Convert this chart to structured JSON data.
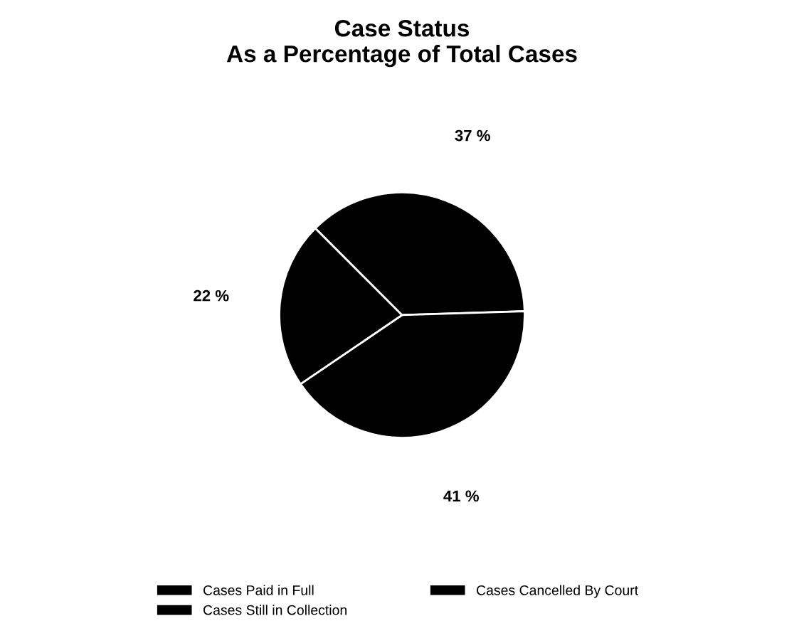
{
  "chart_data": {
    "type": "pie",
    "title": "Case Status\nAs a Percentage of Total Cases",
    "categories": [
      "Cases Paid in Full",
      "Cases Still in Collection",
      "Cases Cancelled By Court"
    ],
    "values": [
      37,
      41,
      22
    ],
    "value_labels": [
      "37 %",
      "41 %",
      "22 %"
    ],
    "colors": [
      "#000000",
      "#000000",
      "#000000"
    ],
    "legend": "bottom"
  }
}
